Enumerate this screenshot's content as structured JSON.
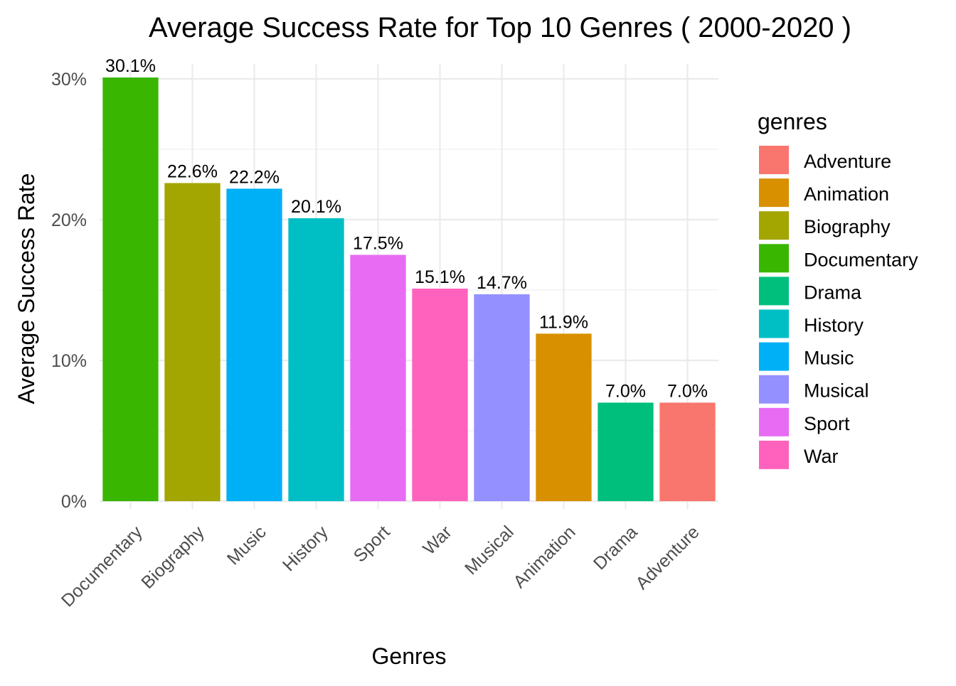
{
  "chart_data": {
    "type": "bar",
    "title": "Average Success Rate for Top 10 Genres ( 2000-2020 )",
    "xlabel": "Genres",
    "ylabel": "Average Success Rate",
    "categories": [
      "Documentary",
      "Biography",
      "Music",
      "History",
      "Sport",
      "War",
      "Musical",
      "Animation",
      "Drama",
      "Adventure"
    ],
    "values": [
      30.1,
      22.6,
      22.2,
      20.1,
      17.5,
      15.1,
      14.7,
      11.9,
      7.0,
      7.0
    ],
    "value_labels": [
      "30.1%",
      "22.6%",
      "22.2%",
      "20.1%",
      "17.5%",
      "15.1%",
      "14.7%",
      "11.9%",
      "7.0%",
      "7.0%"
    ],
    "ylim": [
      0,
      30.1
    ],
    "y_ticks": [
      0,
      10,
      20,
      30
    ],
    "y_tick_labels": [
      "0%",
      "10%",
      "20%",
      "30%"
    ],
    "grid": true,
    "legend": {
      "title": "genres",
      "position": "right",
      "items": [
        {
          "label": "Adventure",
          "color": "#F8766D"
        },
        {
          "label": "Animation",
          "color": "#D89000"
        },
        {
          "label": "Biography",
          "color": "#A3A500"
        },
        {
          "label": "Documentary",
          "color": "#39B600"
        },
        {
          "label": "Drama",
          "color": "#00BF7D"
        },
        {
          "label": "History",
          "color": "#00BFC4"
        },
        {
          "label": "Music",
          "color": "#00B0F6"
        },
        {
          "label": "Musical",
          "color": "#9590FF"
        },
        {
          "label": "Sport",
          "color": "#E76BF3"
        },
        {
          "label": "War",
          "color": "#FF62BC"
        }
      ]
    },
    "colors": {
      "Adventure": "#F8766D",
      "Animation": "#D89000",
      "Biography": "#A3A500",
      "Documentary": "#39B600",
      "Drama": "#00BF7D",
      "History": "#00BFC4",
      "Music": "#00B0F6",
      "Musical": "#9590FF",
      "Sport": "#E76BF3",
      "War": "#FF62BC"
    }
  }
}
